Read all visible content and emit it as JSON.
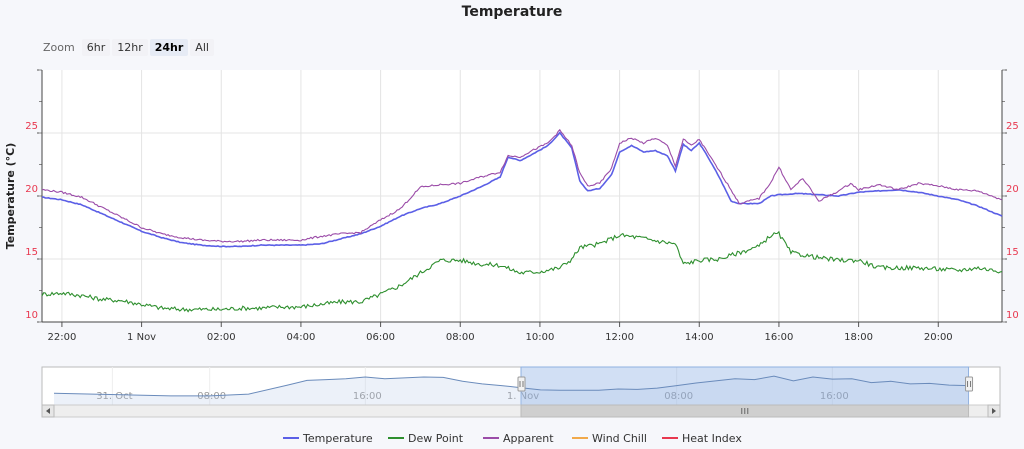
{
  "chart_data": {
    "type": "line",
    "title": "Temperature",
    "ylabel": "Temperature (°C)",
    "ylim": [
      10,
      30
    ],
    "yticks": [
      10,
      15,
      20,
      25
    ],
    "xlabels": [
      "22:00",
      "1 Nov",
      "02:00",
      "04:00",
      "06:00",
      "08:00",
      "10:00",
      "12:00",
      "14:00",
      "16:00",
      "18:00",
      "20:00"
    ],
    "xlim_hours": [
      -2.5,
      21.6
    ],
    "series": [
      {
        "name": "Temperature",
        "color": "#5b5fe6",
        "points": [
          [
            -2.5,
            19.9
          ],
          [
            -2,
            19.7
          ],
          [
            -1.5,
            19.3
          ],
          [
            -1,
            18.6
          ],
          [
            -0.5,
            17.9
          ],
          [
            0,
            17.2
          ],
          [
            0.5,
            16.7
          ],
          [
            1,
            16.3
          ],
          [
            1.5,
            16.1
          ],
          [
            2,
            16
          ],
          [
            2.5,
            16
          ],
          [
            3,
            16.1
          ],
          [
            3.5,
            16.1
          ],
          [
            4,
            16.1
          ],
          [
            4.5,
            16.2
          ],
          [
            5,
            16.6
          ],
          [
            5.5,
            17
          ],
          [
            6,
            17.6
          ],
          [
            6.5,
            18.4
          ],
          [
            7,
            19
          ],
          [
            7.5,
            19.4
          ],
          [
            8,
            20
          ],
          [
            8.5,
            20.7
          ],
          [
            9,
            21.5
          ],
          [
            9.2,
            23.1
          ],
          [
            9.5,
            22.8
          ],
          [
            9.8,
            23.3
          ],
          [
            10.2,
            24
          ],
          [
            10.5,
            25
          ],
          [
            10.8,
            23.8
          ],
          [
            11,
            21.2
          ],
          [
            11.2,
            20.4
          ],
          [
            11.5,
            20.6
          ],
          [
            11.8,
            21.7
          ],
          [
            12,
            23.5
          ],
          [
            12.3,
            24
          ],
          [
            12.6,
            23.5
          ],
          [
            12.9,
            23.6
          ],
          [
            13.2,
            23.2
          ],
          [
            13.4,
            22
          ],
          [
            13.6,
            24.1
          ],
          [
            13.8,
            23.6
          ],
          [
            14,
            24.2
          ],
          [
            14.2,
            23.2
          ],
          [
            14.5,
            21.5
          ],
          [
            14.8,
            19.6
          ],
          [
            15,
            19.4
          ],
          [
            15.5,
            19.4
          ],
          [
            15.8,
            20
          ],
          [
            16,
            20.1
          ],
          [
            16.5,
            20.2
          ],
          [
            17,
            20.1
          ],
          [
            17.5,
            20
          ],
          [
            18,
            20.3
          ],
          [
            18.5,
            20.4
          ],
          [
            19,
            20.5
          ],
          [
            19.5,
            20.3
          ],
          [
            20,
            20
          ],
          [
            20.5,
            19.7
          ],
          [
            21,
            19.2
          ],
          [
            21.6,
            18.4
          ]
        ]
      },
      {
        "name": "Dew Point",
        "color": "#2e8f2e",
        "points": [
          [
            -2.5,
            12.2
          ],
          [
            -2,
            12.3
          ],
          [
            -1.5,
            12.1
          ],
          [
            -1,
            11.8
          ],
          [
            -0.5,
            11.7
          ],
          [
            0,
            11.4
          ],
          [
            0.5,
            11.1
          ],
          [
            1,
            11
          ],
          [
            1.5,
            11
          ],
          [
            2,
            11
          ],
          [
            2.5,
            11.1
          ],
          [
            3,
            11.1
          ],
          [
            3.5,
            11.2
          ],
          [
            4,
            11.2
          ],
          [
            4.5,
            11.4
          ],
          [
            5,
            11.6
          ],
          [
            5.5,
            11.6
          ],
          [
            6,
            12.2
          ],
          [
            6.5,
            12.9
          ],
          [
            7,
            13.9
          ],
          [
            7.5,
            14.9
          ],
          [
            8,
            14.9
          ],
          [
            8.5,
            14.6
          ],
          [
            9,
            14.5
          ],
          [
            9.5,
            13.9
          ],
          [
            10,
            14
          ],
          [
            10.5,
            14.3
          ],
          [
            10.8,
            15
          ],
          [
            11,
            15.9
          ],
          [
            11.5,
            16.2
          ],
          [
            12,
            16.9
          ],
          [
            12.5,
            16.7
          ],
          [
            13,
            16.4
          ],
          [
            13.4,
            16.2
          ],
          [
            13.6,
            14.6
          ],
          [
            14,
            14.9
          ],
          [
            14.5,
            15
          ],
          [
            15,
            15.5
          ],
          [
            15.5,
            16
          ],
          [
            15.8,
            16.9
          ],
          [
            16,
            17
          ],
          [
            16.3,
            15.5
          ],
          [
            17,
            15.1
          ],
          [
            17.5,
            14.9
          ],
          [
            18,
            14.9
          ],
          [
            18.5,
            14.3
          ],
          [
            19,
            14.3
          ],
          [
            19.5,
            14.3
          ],
          [
            20,
            14.2
          ],
          [
            20.5,
            14.1
          ],
          [
            21,
            14.3
          ],
          [
            21.6,
            14
          ]
        ]
      },
      {
        "name": "Apparent",
        "color": "#9b4ca8",
        "points": [
          [
            -2.5,
            20.5
          ],
          [
            -2,
            20.3
          ],
          [
            -1.5,
            19.9
          ],
          [
            -1,
            19.1
          ],
          [
            -0.5,
            18.3
          ],
          [
            0,
            17.5
          ],
          [
            0.5,
            17
          ],
          [
            1,
            16.7
          ],
          [
            1.5,
            16.5
          ],
          [
            2,
            16.4
          ],
          [
            2.5,
            16.4
          ],
          [
            3,
            16.5
          ],
          [
            3.5,
            16.5
          ],
          [
            4,
            16.5
          ],
          [
            4.5,
            16.8
          ],
          [
            5,
            17
          ],
          [
            5.5,
            17.1
          ],
          [
            6,
            18.1
          ],
          [
            6.5,
            19
          ],
          [
            7,
            20.7
          ],
          [
            7.5,
            20.9
          ],
          [
            8,
            21
          ],
          [
            8.5,
            21.5
          ],
          [
            9,
            21.9
          ],
          [
            9.2,
            23.2
          ],
          [
            9.5,
            23.1
          ],
          [
            9.8,
            23.6
          ],
          [
            10.2,
            24.2
          ],
          [
            10.5,
            25.2
          ],
          [
            10.8,
            24
          ],
          [
            11,
            21.8
          ],
          [
            11.2,
            20.8
          ],
          [
            11.5,
            21
          ],
          [
            11.8,
            22.2
          ],
          [
            12,
            24.2
          ],
          [
            12.3,
            24.6
          ],
          [
            12.6,
            24.2
          ],
          [
            12.9,
            24.6
          ],
          [
            13.2,
            24
          ],
          [
            13.4,
            22.4
          ],
          [
            13.6,
            24.5
          ],
          [
            13.8,
            24
          ],
          [
            14,
            24.5
          ],
          [
            14.2,
            23.5
          ],
          [
            14.5,
            22
          ],
          [
            14.8,
            20.5
          ],
          [
            15,
            19.4
          ],
          [
            15.5,
            19.8
          ],
          [
            15.8,
            21.1
          ],
          [
            16,
            22.3
          ],
          [
            16.3,
            20.5
          ],
          [
            16.6,
            21.4
          ],
          [
            17,
            19.6
          ],
          [
            17.5,
            20.4
          ],
          [
            17.8,
            21
          ],
          [
            18,
            20.5
          ],
          [
            18.5,
            20.9
          ],
          [
            19,
            20.5
          ],
          [
            19.5,
            21
          ],
          [
            20,
            20.8
          ],
          [
            20.5,
            20.5
          ],
          [
            21,
            20.4
          ],
          [
            21.6,
            19.7
          ]
        ]
      },
      {
        "name": "Wind Chill",
        "color": "#f1a94a",
        "points": []
      },
      {
        "name": "Heat Index",
        "color": "#e8384f",
        "points": []
      }
    ]
  },
  "zoom": {
    "label": "Zoom",
    "buttons": [
      "6hr",
      "12hr",
      "24hr",
      "All"
    ],
    "active": "24hr"
  },
  "navigator": {
    "labels": [
      "31. Oct",
      "08:00",
      "16:00",
      "1. Nov",
      "08:00",
      "16:00"
    ],
    "points": [
      [
        -24,
        17.8
      ],
      [
        -22,
        17.6
      ],
      [
        -20,
        17.4
      ],
      [
        -18,
        17.2
      ],
      [
        -16,
        17.2
      ],
      [
        -14,
        17.6
      ],
      [
        -12,
        19.7
      ],
      [
        -11,
        20.8
      ],
      [
        -10,
        21
      ],
      [
        -9,
        21.2
      ],
      [
        -8,
        21.6
      ],
      [
        -7,
        21.2
      ],
      [
        -6,
        21.4
      ],
      [
        -5,
        21.6
      ],
      [
        -4,
        21.5
      ],
      [
        -3,
        20.6
      ],
      [
        -2,
        20
      ],
      [
        -1,
        19.6
      ],
      [
        0,
        19.1
      ],
      [
        1,
        18.6
      ],
      [
        2,
        18.5
      ],
      [
        3,
        18.5
      ],
      [
        4,
        18.5
      ],
      [
        5,
        18.8
      ],
      [
        6,
        18.7
      ],
      [
        7,
        19
      ],
      [
        8,
        19.6
      ],
      [
        9,
        20.2
      ],
      [
        10,
        20.7
      ],
      [
        11,
        21.2
      ],
      [
        12,
        21
      ],
      [
        13,
        21.8
      ],
      [
        14,
        20.7
      ],
      [
        15,
        21.6
      ],
      [
        16,
        21.1
      ],
      [
        17,
        21.2
      ],
      [
        18,
        20.3
      ],
      [
        19,
        20.6
      ],
      [
        20,
        20
      ],
      [
        21,
        20.1
      ],
      [
        22,
        19.7
      ],
      [
        23,
        19.6
      ]
    ],
    "range_start_hours": 0,
    "range_end_hours": 23,
    "total_range": [
      -24,
      24
    ],
    "ylim": [
      16,
      23
    ]
  }
}
